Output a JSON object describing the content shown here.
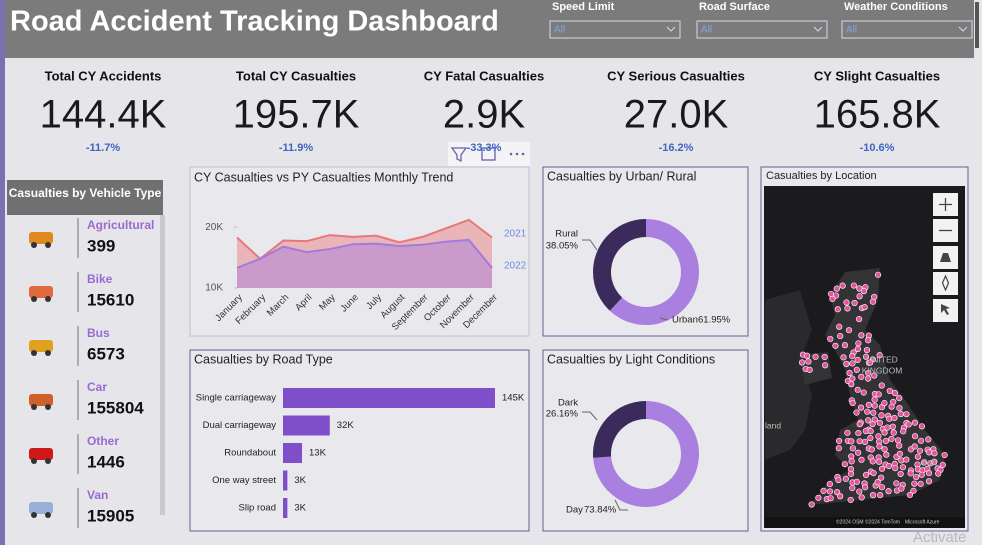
{
  "header": {
    "title": "Road Accident Tracking Dashboard",
    "filters": [
      {
        "label": "Speed Limit",
        "value": "All"
      },
      {
        "label": "Road Surface",
        "value": "All"
      },
      {
        "label": "Weather Conditions",
        "value": "All"
      }
    ]
  },
  "kpis": [
    {
      "label": "Total CY Accidents",
      "value": "144.4K",
      "change": "-11.7%"
    },
    {
      "label": "Total CY Casualties",
      "value": "195.7K",
      "change": "-11.9%"
    },
    {
      "label": "CY Fatal Casualties",
      "value": "2.9K",
      "change": "-33.3%"
    },
    {
      "label": "CY Serious Casualties",
      "value": "27.0K",
      "change": "-16.2%"
    },
    {
      "label": "CY Slight Casualties",
      "value": "165.8K",
      "change": "-10.6%"
    }
  ],
  "vehicles": {
    "title": "Casualties by Vehicle Type",
    "items": [
      {
        "name": "Agricultural",
        "value": 399
      },
      {
        "name": "Bike",
        "value": 15610
      },
      {
        "name": "Bus",
        "value": 6573
      },
      {
        "name": "Car",
        "value": 155804
      },
      {
        "name": "Other",
        "value": 1446
      },
      {
        "name": "Van",
        "value": 15905
      }
    ]
  },
  "chart_data": [
    {
      "type": "area",
      "title": "CY Casualties vs PY Casualties Monthly Trend",
      "categories": [
        "January",
        "February",
        "March",
        "April",
        "May",
        "June",
        "July",
        "August",
        "September",
        "October",
        "November",
        "December"
      ],
      "series": [
        {
          "name": "2021",
          "color": "#e8777a",
          "values": [
            18300,
            14800,
            17800,
            17700,
            18700,
            18400,
            18600,
            17500,
            18400,
            19800,
            21200,
            18300
          ]
        },
        {
          "name": "2022",
          "color": "#a27ae0",
          "values": [
            13300,
            14800,
            16800,
            15900,
            16400,
            17200,
            17300,
            16900,
            17100,
            17600,
            17900,
            13300
          ]
        }
      ],
      "ylim": [
        10000,
        22000
      ],
      "yticks": [
        {
          "value": 10000,
          "label": "10K"
        },
        {
          "value": 20000,
          "label": "20K"
        }
      ]
    },
    {
      "type": "donut",
      "title": "Casualties by Urban/ Rural",
      "categories": [
        "Urban",
        "Rural"
      ],
      "values": [
        61.95,
        38.05
      ],
      "value_labels": [
        "61.95%",
        "38.05%"
      ],
      "colors": [
        "#a980e0",
        "#3b2a5c"
      ]
    },
    {
      "type": "hbar",
      "title": "Casualties by Road Type",
      "categories": [
        "Single carriageway",
        "Dual carriageway",
        "Roundabout",
        "One way street",
        "Slip road"
      ],
      "values": [
        145000,
        32000,
        13000,
        3000,
        3000
      ],
      "value_labels": [
        "145K",
        "32K",
        "13K",
        "3K",
        "3K"
      ],
      "color": "#7f4fc9"
    },
    {
      "type": "donut",
      "title": "Casualties by Light Conditions",
      "categories": [
        "Day",
        "Dark"
      ],
      "values": [
        73.84,
        26.16
      ],
      "value_labels": [
        "73.84%",
        "26.16%"
      ],
      "colors": [
        "#a980e0",
        "#3b2a5c"
      ]
    },
    {
      "type": "map",
      "title": "Casualties by Location",
      "labels": [
        "UNITED",
        "KINGDOM",
        "don",
        "land"
      ],
      "attribution": [
        "©2024 OSM ©2024 TomTom",
        "Microsoft Azure"
      ]
    }
  ],
  "watermark": "Activate"
}
